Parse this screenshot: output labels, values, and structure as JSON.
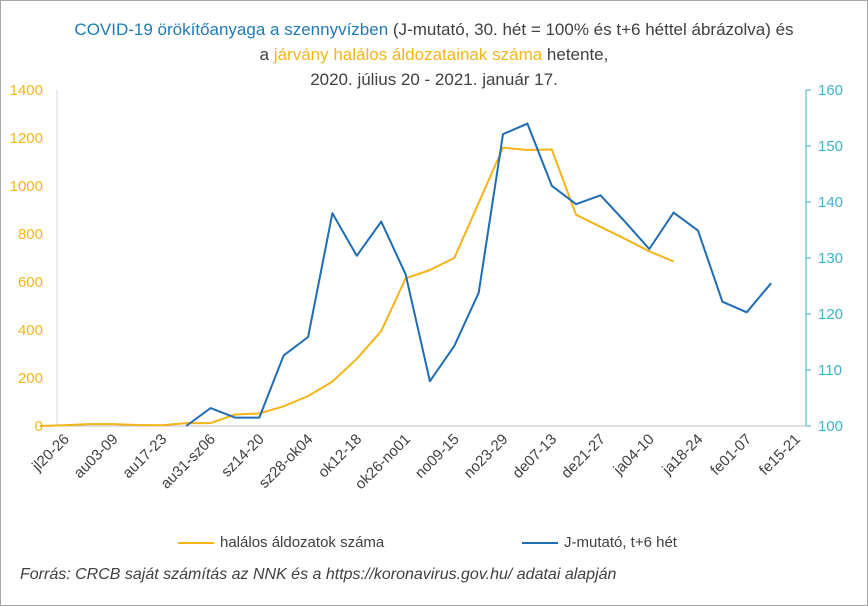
{
  "title": {
    "part1": "COVID-19 örökítőanyaga a szennyvízben",
    "part2": " (J-mutató, 30. hét = 100% és t+6 héttel ábrázolva) és a ",
    "part3": "járvány halálos áldozatainak száma",
    "part4": " hetente,",
    "line3": "2020. július 20 - 2021. január 17."
  },
  "legend": {
    "deaths": "halálos áldozatok száma",
    "jindex": "J-mutató, t+6 hét"
  },
  "source": "Forrás: CRCB saját számítás az NNK és a https://koronavirus.gov.hu/ adatai alapján",
  "colors": {
    "deaths": "#f4b41a",
    "jindex": "#1f6db3",
    "right_axis": "#3fb1c9",
    "left_axis": "#f4b41a"
  },
  "chart_data": {
    "type": "line",
    "x_tick_labels": [
      "jl20-26",
      "au03-09",
      "au17-23",
      "au31-sz06",
      "sz14-20",
      "sz28-ok04",
      "ok12-18",
      "ok26-no01",
      "no09-15",
      "no23-29",
      "de07-13",
      "de21-27",
      "ja04-10",
      "ja18-24",
      "fe01-07",
      "fe15-21"
    ],
    "y_left_lim": [
      0,
      1400
    ],
    "y_left_ticks": [
      0,
      200,
      400,
      600,
      800,
      1000,
      1200,
      1400
    ],
    "y_right_lim": [
      100,
      160
    ],
    "y_right_ticks": [
      100,
      110,
      120,
      130,
      140,
      150,
      160
    ],
    "series": [
      {
        "name": "halálos áldozatok száma",
        "axis": "left",
        "values": [
          0,
          3,
          8,
          8,
          4,
          3,
          12,
          12,
          48,
          52,
          82,
          125,
          185,
          280,
          395,
          615,
          650,
          700,
          930,
          1160,
          1150,
          1152,
          880,
          830,
          780,
          728,
          686
        ]
      },
      {
        "name": "J-mutató, t+6 hét",
        "axis": "right",
        "values": [
          null,
          null,
          null,
          null,
          null,
          null,
          100,
          103.2,
          101.5,
          101.5,
          112.6,
          115.9,
          138.0,
          130.4,
          136.5,
          127.1,
          108.0,
          114.3,
          123.8,
          152.1,
          154.0,
          142.9,
          139.6,
          141.2,
          136.5,
          131.6,
          138.1,
          134.9,
          122.2,
          120.3,
          125.5
        ]
      }
    ]
  }
}
